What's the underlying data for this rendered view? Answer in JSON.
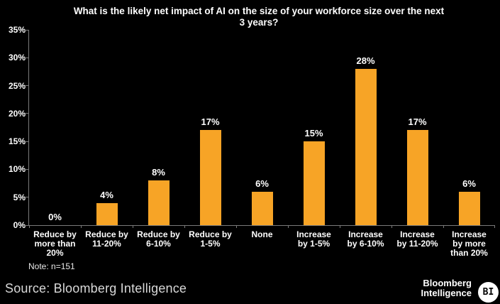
{
  "chart_data": {
    "type": "bar",
    "title": "What is the likely net impact of AI on the size of your workforce size over the next\n3 years?",
    "categories": [
      "Reduce by\nmore than\n20%",
      "Reduce by\n11-20%",
      "Reduce by\n6-10%",
      "Reduce by\n1-5%",
      "None",
      "Increase\nby 1-5%",
      "Increase\nby 6-10%",
      "Increase\nby 11-20%",
      "Increase\nby more\nthan 20%"
    ],
    "values": [
      0,
      4,
      8,
      17,
      6,
      15,
      28,
      17,
      6
    ],
    "value_labels": [
      "0%",
      "4%",
      "8%",
      "17%",
      "6%",
      "15%",
      "28%",
      "17%",
      "6%"
    ],
    "xlabel": "",
    "ylabel": "",
    "ylim": [
      0,
      35
    ],
    "yticks": [
      0,
      5,
      10,
      15,
      20,
      25,
      30,
      35
    ],
    "ytick_labels": [
      "0%",
      "5%",
      "10%",
      "15%",
      "20%",
      "25%",
      "30%",
      "35%"
    ],
    "grid": false,
    "legend": "none"
  },
  "note": "Note: n=151",
  "footer": {
    "source": "Source: Bloomberg Intelligence",
    "logo": {
      "line1": "Bloomberg",
      "line2": "Intelligence",
      "badge": "BI"
    }
  },
  "colors": {
    "background": "#000000",
    "bar": "#F7A426",
    "axis": "#7a7a7a",
    "text": "#ffffff",
    "source_text": "#d9d9d9"
  }
}
